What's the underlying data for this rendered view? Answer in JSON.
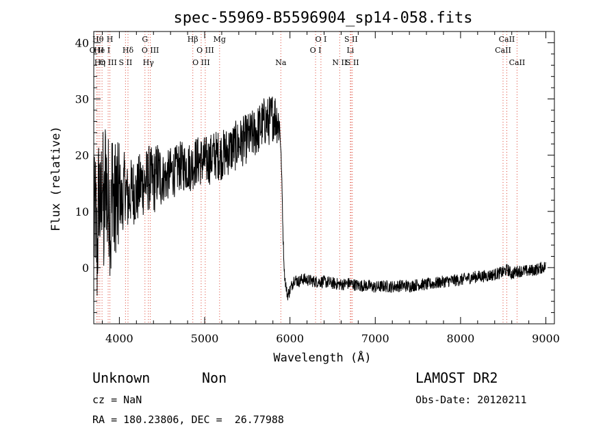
{
  "chart_data": {
    "type": "line",
    "title": "spec-55969-B5596904_sp14-058.fits",
    "xlabel": "Wavelength (Å)",
    "ylabel": "Flux (relative)",
    "xlim": [
      3700,
      9100
    ],
    "ylim": [
      -10,
      42
    ],
    "xticks": [
      4000,
      5000,
      6000,
      7000,
      8000,
      9000
    ],
    "yticks": [
      0,
      10,
      20,
      30,
      40
    ],
    "grid": false,
    "series": [
      {
        "x": [
          3700,
          3720,
          3740,
          3760,
          3780,
          3800,
          3820,
          3840,
          3860,
          3880,
          3900,
          3920,
          3940,
          3960,
          3980,
          4000,
          4030,
          4060,
          4100,
          4150,
          4200,
          4250,
          4300,
          4350,
          4400,
          4450,
          4500,
          4550,
          4600,
          4650,
          4700,
          4750,
          4800,
          4850,
          4900,
          4950,
          5000,
          5050,
          5100,
          5150,
          5200,
          5300,
          5400,
          5500,
          5600,
          5650,
          5700,
          5750,
          5800,
          5830,
          5860,
          5880,
          5890,
          5900,
          5910,
          5920,
          5935,
          5950,
          5970,
          6000,
          6050,
          6100,
          6150,
          6200,
          6300,
          6400,
          6500,
          6600,
          6700,
          6800,
          6900,
          7000,
          7100,
          7200,
          7300,
          7400,
          7500,
          7600,
          7700,
          7800,
          7900,
          8000,
          8100,
          8200,
          8300,
          8400,
          8500,
          8550,
          8600,
          8650,
          8700,
          8800,
          8900,
          8950,
          9000
        ],
        "y": [
          6,
          10,
          2,
          15,
          8,
          18,
          5,
          20,
          10,
          14,
          6,
          18,
          8,
          15,
          10,
          14,
          11,
          15,
          12,
          14,
          13,
          15,
          15,
          16,
          15,
          17,
          16,
          16,
          17,
          17,
          18,
          18,
          18,
          18,
          19,
          19,
          19,
          19,
          20,
          20,
          20,
          21,
          22,
          23,
          24,
          25,
          26,
          26,
          27,
          27,
          26,
          25,
          22,
          18,
          12,
          5,
          -1,
          -3,
          -5,
          -4,
          -2,
          -2.5,
          -2,
          -2.2,
          -2.5,
          -2.5,
          -2.8,
          -3,
          -2.8,
          -3.2,
          -3.2,
          -3.5,
          -3.3,
          -3.4,
          -3.2,
          -3.3,
          -3,
          -3,
          -2.8,
          -2.5,
          -2.3,
          -2.2,
          -1.8,
          -1.6,
          -1.5,
          -1.2,
          -0.8,
          -0.3,
          -1.2,
          -0.7,
          -0.6,
          -0.6,
          -0.3,
          0,
          0.2
        ]
      }
    ],
    "lines": [
      {
        "x": 3734,
        "label": "O II",
        "row": 1
      },
      {
        "x": 3750,
        "label": "Hθ",
        "row": 0
      },
      {
        "x": 3771,
        "label": "Hη",
        "row": 2
      },
      {
        "x": 3797,
        "label": "He I",
        "row": 1
      },
      {
        "x": 3869,
        "label": "O III",
        "row": 2
      },
      {
        "x": 3889,
        "label": "H",
        "row": 0
      },
      {
        "x": 4072,
        "label": "S II",
        "row": 2
      },
      {
        "x": 4101,
        "label": "Hδ",
        "row": 1
      },
      {
        "x": 4300,
        "label": "G",
        "row": 0
      },
      {
        "x": 4340,
        "label": "Hγ",
        "row": 2
      },
      {
        "x": 4363,
        "label": "O III",
        "row": 1
      },
      {
        "x": 4861,
        "label": "Hβ",
        "row": 0
      },
      {
        "x": 4959,
        "label": "O III",
        "row": 2
      },
      {
        "x": 5007,
        "label": "O III",
        "row": 1
      },
      {
        "x": 5175,
        "label": "Mg",
        "row": 0
      },
      {
        "x": 5893,
        "label": "Na",
        "row": 2
      },
      {
        "x": 6300,
        "label": "O I",
        "row": 1
      },
      {
        "x": 6363,
        "label": "O I",
        "row": 0
      },
      {
        "x": 6583,
        "label": "N II",
        "row": 2
      },
      {
        "x": 6708,
        "label": "Li",
        "row": 1
      },
      {
        "x": 6716,
        "label": "S II",
        "row": 0
      },
      {
        "x": 6731,
        "label": "S II",
        "row": 2
      },
      {
        "x": 8498,
        "label": "CaII",
        "row": 1
      },
      {
        "x": 8542,
        "label": "CaII",
        "row": 0
      },
      {
        "x": 8662,
        "label": "CaII",
        "row": 2
      }
    ]
  },
  "info": {
    "class_label": "Unknown",
    "subclass_label": "Non",
    "survey": "LAMOST DR2",
    "redshift": "cz = NaN",
    "obs_date": "Obs-Date: 20120211",
    "coords": "RA = 180.23806, DEC =  26.77988"
  }
}
